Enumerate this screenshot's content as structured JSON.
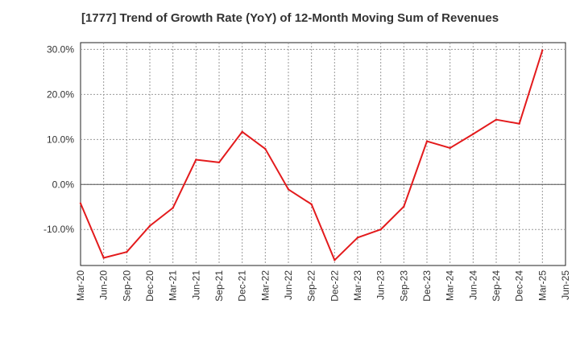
{
  "chart_data": {
    "type": "line",
    "title": "[1777]  Trend of Growth Rate (YoY) of 12-Month Moving Sum of Revenues",
    "xlabel": "",
    "ylabel": "",
    "y_unit": "%",
    "ylim": [
      -18.0,
      31.5
    ],
    "y_ticks": [
      {
        "value": -10,
        "label": "-10.0%"
      },
      {
        "value": 0,
        "label": "0.0%"
      },
      {
        "value": 10,
        "label": "10.0%"
      },
      {
        "value": 20,
        "label": "20.0%"
      },
      {
        "value": 30,
        "label": "30.0%"
      }
    ],
    "x_ticks": [
      "Mar-20",
      "Jun-20",
      "Sep-20",
      "Dec-20",
      "Mar-21",
      "Jun-21",
      "Sep-21",
      "Dec-21",
      "Mar-22",
      "Jun-22",
      "Sep-22",
      "Dec-22",
      "Mar-23",
      "Jun-23",
      "Sep-23",
      "Dec-23",
      "Mar-24",
      "Jun-24",
      "Sep-24",
      "Dec-24",
      "Mar-25",
      "Jun-25"
    ],
    "grid": true,
    "legend": "none",
    "series": [
      {
        "color": "#e31a1c",
        "x": [
          "Mar-20",
          "Jun-20",
          "Sep-20",
          "Dec-20",
          "Mar-21",
          "Jun-21",
          "Sep-21",
          "Dec-21",
          "Mar-22",
          "Jun-22",
          "Sep-22",
          "Dec-22",
          "Mar-23",
          "Jun-23",
          "Sep-23",
          "Dec-23",
          "Mar-24",
          "Jun-24",
          "Sep-24",
          "Dec-24",
          "Mar-25"
        ],
        "values": [
          -4.2,
          -16.3,
          -15.0,
          -9.2,
          -5.2,
          5.5,
          4.9,
          11.7,
          7.9,
          -1.1,
          -4.4,
          -16.8,
          -11.8,
          -10.0,
          -4.9,
          9.6,
          8.1,
          11.2,
          14.4,
          13.5,
          29.8
        ]
      }
    ]
  }
}
